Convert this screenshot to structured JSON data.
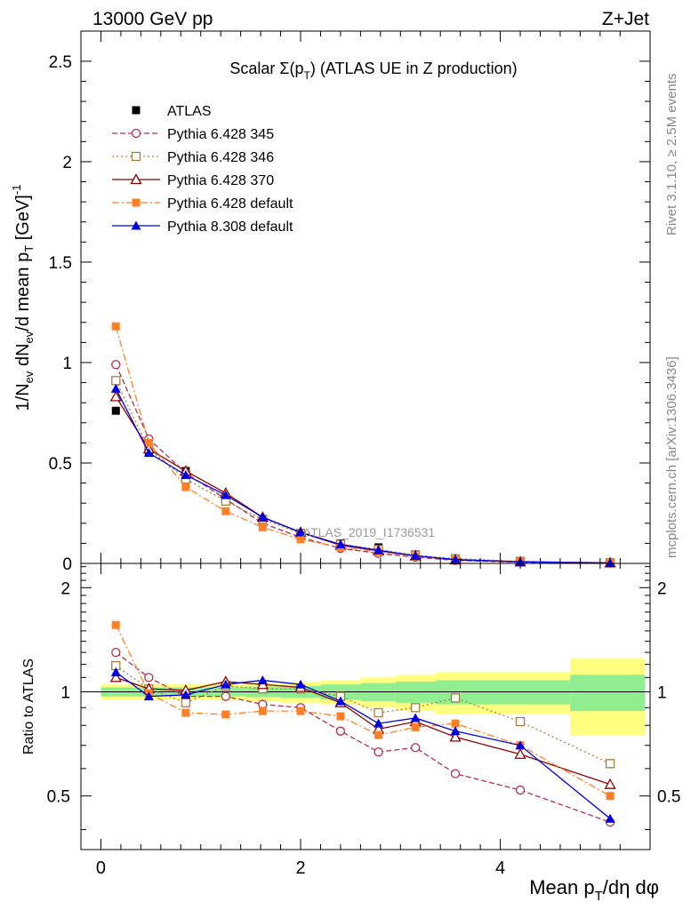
{
  "header": {
    "left": "13000 GeV pp",
    "right": "Z+Jet"
  },
  "side_text": {
    "rivet": "Rivet 3.1.10, ≥ 2.5M events",
    "mcplots": "mcplots.cern.ch [arXiv:1306.3436]"
  },
  "chart_data": [
    {
      "type": "scatter",
      "panel": "main",
      "title": "Scalar Σ(p_T) (ATLAS UE in Z production)",
      "xlabel": "Mean p_T/dη dφ",
      "ylabel": "1/N_ev dN_ev/d mean p_T [GeV]^-1",
      "watermark": "ATLAS_2019_I1736531",
      "xlim": [
        -0.2,
        5.5
      ],
      "ylim": [
        0,
        2.65
      ],
      "yticks": [
        0,
        0.5,
        1,
        1.5,
        2,
        2.5
      ],
      "ytick_labels": [
        "0",
        "0.5",
        "1",
        "1.5",
        "2",
        "2.5"
      ],
      "legend_position": "top-left",
      "x": [
        0.15,
        0.48,
        0.85,
        1.25,
        1.62,
        2.0,
        2.4,
        2.78,
        3.15,
        3.55,
        4.2,
        5.1
      ],
      "series": [
        {
          "name": "ATLAS",
          "color": "#000000",
          "marker": "square-filled",
          "line": "none",
          "values": [
            0.76,
            0.56,
            0.46,
            0.33,
            0.22,
            0.15,
            0.1,
            0.08,
            0.045,
            0.025,
            0.012,
            0.005
          ]
        },
        {
          "name": "Pythia 6.428 345",
          "color": "#b03050",
          "marker": "circle-open",
          "line": "dashed",
          "values": [
            0.99,
            0.62,
            0.45,
            0.32,
            0.2,
            0.13,
            0.075,
            0.05,
            0.031,
            0.015,
            0.006,
            0.002
          ]
        },
        {
          "name": "Pythia 6.428 346",
          "color": "#a08040",
          "marker": "square-open",
          "line": "dotted",
          "values": [
            0.91,
            0.57,
            0.42,
            0.31,
            0.22,
            0.15,
            0.095,
            0.069,
            0.041,
            0.024,
            0.01,
            0.003
          ]
        },
        {
          "name": "Pythia 6.428 370",
          "color": "#8b0000",
          "marker": "triangle-open",
          "line": "solid",
          "values": [
            0.83,
            0.57,
            0.46,
            0.35,
            0.23,
            0.155,
            0.09,
            0.063,
            0.037,
            0.018,
            0.008,
            0.003
          ]
        },
        {
          "name": "Pythia 6.428 default",
          "color": "#ff7f27",
          "marker": "square-filled",
          "line": "dashdot",
          "values": [
            1.18,
            0.6,
            0.38,
            0.26,
            0.18,
            0.12,
            0.08,
            0.058,
            0.035,
            0.02,
            0.009,
            0.003
          ]
        },
        {
          "name": "Pythia 8.308 default",
          "color": "#0000e0",
          "marker": "triangle-filled",
          "line": "solid",
          "values": [
            0.87,
            0.55,
            0.44,
            0.34,
            0.23,
            0.155,
            0.095,
            0.065,
            0.038,
            0.019,
            0.008,
            0.002
          ]
        }
      ]
    },
    {
      "type": "scatter",
      "panel": "ratio",
      "ylabel": "Ratio to ATLAS",
      "xlabel": "Mean p_T/dη dφ",
      "xlim": [
        -0.2,
        5.5
      ],
      "ylim": [
        0.35,
        2.35
      ],
      "yticks": [
        0.5,
        1,
        2
      ],
      "ytick_labels": [
        "0.5",
        "1",
        "2"
      ],
      "xticks": [
        0,
        2,
        4
      ],
      "xtick_labels": [
        "0",
        "2",
        "4"
      ],
      "x": [
        0.15,
        0.48,
        0.85,
        1.25,
        1.62,
        2.0,
        2.4,
        2.78,
        3.15,
        3.55,
        4.2,
        5.1
      ],
      "bands": {
        "bin_edges": [
          0.0,
          0.3,
          0.65,
          1.05,
          1.45,
          1.8,
          2.2,
          2.6,
          2.95,
          3.35,
          3.75,
          4.7,
          5.45
        ],
        "inner_color": "#90ee90",
        "outer_color": "#ffff80",
        "inner_halfwidth": [
          0.03,
          0.03,
          0.03,
          0.03,
          0.035,
          0.04,
          0.05,
          0.06,
          0.07,
          0.08,
          0.08,
          0.12
        ],
        "outer_halfwidth": [
          0.05,
          0.05,
          0.05,
          0.055,
          0.06,
          0.07,
          0.08,
          0.1,
          0.12,
          0.14,
          0.14,
          0.25
        ]
      },
      "series": [
        {
          "name": "Pythia 6.428 345",
          "color": "#b03050",
          "marker": "circle-open",
          "line": "dashed",
          "values": [
            1.3,
            1.1,
            0.97,
            0.97,
            0.92,
            0.9,
            0.77,
            0.67,
            0.69,
            0.58,
            0.52,
            0.42
          ]
        },
        {
          "name": "Pythia 6.428 346",
          "color": "#a08040",
          "marker": "square-open",
          "line": "dotted",
          "values": [
            1.19,
            1.02,
            0.93,
            1.04,
            1.02,
            1.02,
            0.97,
            0.87,
            0.9,
            0.96,
            0.82,
            0.62
          ]
        },
        {
          "name": "Pythia 6.428 370",
          "color": "#8b0000",
          "marker": "triangle-open",
          "line": "solid",
          "values": [
            1.1,
            1.02,
            1.01,
            1.07,
            1.05,
            1.03,
            0.93,
            0.78,
            0.82,
            0.74,
            0.66,
            0.54
          ]
        },
        {
          "name": "Pythia 6.428 default",
          "color": "#ff7f27",
          "marker": "square-filled",
          "line": "dashdot",
          "values": [
            1.56,
            0.99,
            0.87,
            0.86,
            0.88,
            0.88,
            0.85,
            0.75,
            0.79,
            0.81,
            0.7,
            0.5
          ]
        },
        {
          "name": "Pythia 8.308 default",
          "color": "#0000e0",
          "marker": "triangle-filled",
          "line": "solid",
          "values": [
            1.14,
            0.97,
            0.98,
            1.05,
            1.08,
            1.05,
            0.94,
            0.81,
            0.84,
            0.77,
            0.7,
            0.43
          ]
        }
      ]
    }
  ]
}
